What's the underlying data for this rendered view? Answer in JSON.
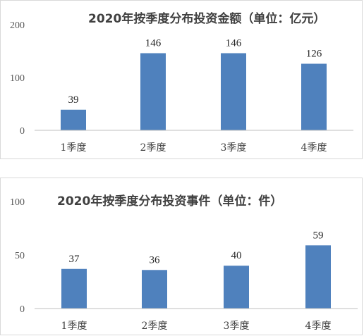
{
  "colors": {
    "bar": "#4f81bd",
    "axis": "#bfbfbf",
    "text": "#404040"
  },
  "chart_data": [
    {
      "type": "bar",
      "title": "2020年按季度分布投资金额（单位：亿元）",
      "categories": [
        "1季度",
        "2季度",
        "3季度",
        "4季度"
      ],
      "values": [
        39,
        146,
        146,
        126
      ],
      "data_labels": [
        "39",
        "146",
        "146",
        "126"
      ],
      "ylim": [
        0,
        200
      ],
      "yticks": [
        0,
        100,
        200
      ],
      "ytick_labels": [
        "0",
        "100",
        "200"
      ],
      "grid": false,
      "legend": "none"
    },
    {
      "type": "bar",
      "title": "2020年按季度分布投资事件（单位：件）",
      "categories": [
        "1季度",
        "2季度",
        "3季度",
        "4季度"
      ],
      "values": [
        37,
        36,
        40,
        59
      ],
      "data_labels": [
        "37",
        "36",
        "40",
        "59"
      ],
      "ylim": [
        0,
        100
      ],
      "yticks": [
        0,
        50,
        100
      ],
      "ytick_labels": [
        "0",
        "50",
        "100"
      ],
      "grid": false,
      "legend": "none"
    }
  ]
}
